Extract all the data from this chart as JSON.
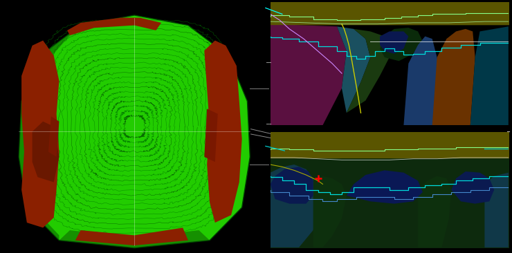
{
  "bg_color": "#000000",
  "fig_width": 7.4,
  "fig_height": 3.66,
  "pit_color": "#22cc00",
  "pit_dark": "#118800",
  "ore_color": "#8B2000",
  "contour_color": "#009900",
  "contour_dark": "#006600"
}
